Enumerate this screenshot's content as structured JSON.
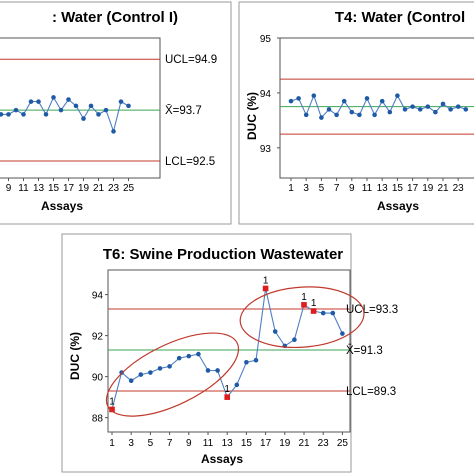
{
  "colors": {
    "limit_line": "#c0392b",
    "center_line": "#3aa655",
    "series_line": "#4f7fc4",
    "marker": "#1f5aa6",
    "flag_marker": "#e01b1b",
    "ellipse": "#c0392b",
    "frame": "#9a9a9a"
  },
  "chart_data": [
    {
      "type": "line",
      "title": ": Water (Control I)",
      "xlabel": "Assays",
      "ylabel": "",
      "x_ticks": [
        9,
        11,
        13,
        15,
        17,
        19,
        21,
        23,
        25
      ],
      "x": [
        8,
        9,
        10,
        11,
        12,
        13,
        14,
        15,
        16,
        17,
        18,
        19,
        20,
        21,
        22,
        23,
        24,
        25
      ],
      "values": [
        93.6,
        93.6,
        93.7,
        93.6,
        93.9,
        93.9,
        93.6,
        94.0,
        93.7,
        93.95,
        93.8,
        93.5,
        93.8,
        93.6,
        93.7,
        93.2,
        93.9,
        93.8
      ],
      "control_limits": {
        "ucl": 94.9,
        "ucl_label": "UCL=94.9",
        "center": 93.7,
        "center_label": "X̄=93.7",
        "lcl": 92.5,
        "lcl_label": "LCL=92.5"
      },
      "ylim": [
        92.1,
        95.4
      ]
    },
    {
      "type": "line",
      "title": "T4: Water (Control",
      "xlabel": "Assays",
      "ylabel": "DUC (%)",
      "y_ticks": [
        93,
        94,
        95
      ],
      "x_ticks": [
        1,
        3,
        5,
        7,
        9,
        11,
        13,
        15,
        17,
        19,
        21,
        23
      ],
      "x": [
        1,
        2,
        3,
        4,
        5,
        6,
        7,
        8,
        9,
        10,
        11,
        12,
        13,
        14,
        15,
        16,
        17,
        18,
        19,
        20,
        21,
        22,
        23,
        24
      ],
      "values": [
        93.85,
        93.9,
        93.6,
        93.95,
        93.55,
        93.7,
        93.6,
        93.85,
        93.65,
        93.6,
        93.9,
        93.6,
        93.85,
        93.65,
        93.95,
        93.7,
        93.75,
        93.7,
        93.75,
        93.65,
        93.8,
        93.7,
        93.75,
        93.7
      ],
      "control_limits": {
        "ucl": 94.25,
        "center": 93.75,
        "lcl": 93.25
      },
      "ylim": [
        92.45,
        95.0
      ]
    },
    {
      "type": "line",
      "title": "T6: Swine Production Wastewater",
      "xlabel": "Assays",
      "ylabel": "DUC (%)",
      "y_ticks": [
        88,
        90,
        92,
        94
      ],
      "x_ticks": [
        1,
        3,
        5,
        7,
        9,
        11,
        13,
        15,
        17,
        19,
        21,
        23,
        25
      ],
      "x": [
        1,
        2,
        3,
        4,
        5,
        6,
        7,
        8,
        9,
        10,
        11,
        12,
        13,
        14,
        15,
        16,
        17,
        18,
        19,
        20,
        21,
        22,
        23,
        24,
        25
      ],
      "values": [
        88.4,
        90.2,
        89.8,
        90.1,
        90.2,
        90.4,
        90.5,
        90.9,
        91.0,
        91.1,
        90.3,
        90.3,
        89.0,
        89.6,
        90.7,
        90.8,
        94.3,
        92.2,
        91.5,
        91.8,
        93.5,
        93.2,
        93.1,
        93.1,
        92.1
      ],
      "flagged": [
        1,
        13,
        17,
        21,
        22
      ],
      "flag_label": "1",
      "control_limits": {
        "ucl": 93.3,
        "ucl_label": "UCL=93.3",
        "center": 91.3,
        "center_label": "X̄=91.3",
        "lcl": 89.3,
        "lcl_label": "LCL=89.3"
      },
      "ylim": [
        87.3,
        95.2
      ]
    }
  ]
}
